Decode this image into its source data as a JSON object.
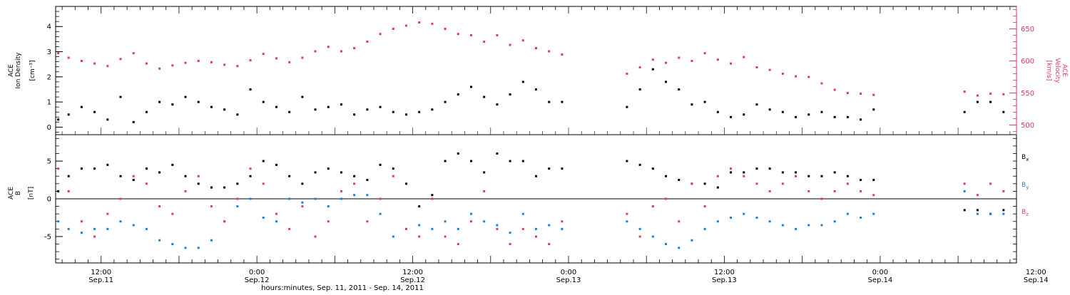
{
  "colors": {
    "black": "#000000",
    "pink": "#e5356a",
    "blue": "#1f7fd6"
  },
  "x_axis": {
    "xlabel": "hours:minutes, Sep. 11, 2011 - Sep. 14, 2011",
    "xlim_hours": [
      -3.5,
      70.5
    ],
    "ticks": [
      {
        "hours": 0,
        "time": "12:00",
        "date": "Sep.11"
      },
      {
        "hours": 12,
        "time": "0:00",
        "date": "Sep.12"
      },
      {
        "hours": 24,
        "time": "12:00",
        "date": "Sep.12"
      },
      {
        "hours": 36,
        "time": "0:00",
        "date": "Sep.13"
      },
      {
        "hours": 48,
        "time": "12:00",
        "date": "Sep.13"
      },
      {
        "hours": 60,
        "time": "0:00",
        "date": "Sep.14"
      },
      {
        "hours": 72,
        "time": "12:00",
        "date": "Sep.14"
      }
    ]
  },
  "chart_data": [
    {
      "type": "scatter",
      "panel": "top",
      "ylabel_lines": [
        "ACE",
        "Ion Density"
      ],
      "yunit": "[cm⁻³]",
      "ylim": [
        -0.3,
        4.8
      ],
      "yticks": [
        0,
        1,
        2,
        3,
        4
      ],
      "y2label_lines": [
        "ACE",
        "Velocity"
      ],
      "y2unit": "[km/s]",
      "y2lim": [
        485,
        685
      ],
      "y2ticks": [
        500,
        550,
        600,
        650
      ],
      "series": [
        {
          "key": "density",
          "axis": "left",
          "color": "#000000",
          "x": [
            -3.3,
            -2.5,
            -1.5,
            -0.5,
            0.5,
            1.5,
            2.5,
            3.5,
            4.5,
            5.5,
            6.5,
            7.5,
            8.5,
            9.5,
            10.5,
            11.5,
            12.5,
            13.5,
            14.5,
            15.5,
            16.5,
            17.5,
            18.5,
            19.5,
            20.5,
            21.5,
            22.5,
            23.5,
            24.5,
            25.5,
            26.5,
            27.5,
            28.5,
            29.5,
            30.5,
            31.5,
            32.5,
            33.5,
            34.5,
            35.5,
            40.5,
            41.5,
            42.5,
            43.5,
            44.5,
            45.5,
            46.5,
            47.5,
            48.5,
            49.5,
            50.5,
            51.5,
            52.5,
            53.5,
            54.5,
            55.5,
            56.5,
            57.5,
            58.5,
            59.5,
            66.5,
            67.5,
            68.5,
            69.5
          ],
          "y": [
            0.3,
            0.5,
            0.8,
            0.6,
            0.3,
            1.2,
            0.2,
            0.6,
            1.0,
            0.9,
            1.2,
            1.0,
            0.8,
            0.7,
            0.5,
            1.5,
            1.0,
            0.8,
            0.6,
            1.2,
            0.7,
            0.8,
            0.9,
            0.5,
            0.7,
            0.8,
            0.6,
            0.5,
            0.6,
            0.7,
            1.0,
            1.3,
            1.6,
            1.2,
            0.9,
            1.3,
            1.8,
            1.5,
            1.0,
            1.0,
            0.8,
            1.5,
            2.3,
            1.8,
            1.5,
            0.9,
            1.0,
            0.6,
            0.4,
            0.5,
            0.9,
            0.7,
            0.6,
            0.4,
            0.5,
            0.6,
            0.4,
            0.4,
            0.3,
            0.7,
            0.6,
            1.0,
            1.0,
            0.6
          ]
        },
        {
          "key": "velocity",
          "axis": "right",
          "color": "#e5356a",
          "x": [
            -3.3,
            -2.5,
            -1.5,
            -0.5,
            0.5,
            1.5,
            2.5,
            3.5,
            4.5,
            5.5,
            6.5,
            7.5,
            8.5,
            9.5,
            10.5,
            11.5,
            12.5,
            13.5,
            14.5,
            15.5,
            16.5,
            17.5,
            18.5,
            19.5,
            20.5,
            21.5,
            22.5,
            23.5,
            24.5,
            25.5,
            26.5,
            27.5,
            28.5,
            29.5,
            30.5,
            31.5,
            32.5,
            33.5,
            34.5,
            35.5,
            40.5,
            41.5,
            42.5,
            43.5,
            44.5,
            45.5,
            46.5,
            47.5,
            48.5,
            49.5,
            50.5,
            51.5,
            52.5,
            53.5,
            54.5,
            55.5,
            56.5,
            57.5,
            58.5,
            59.5,
            66.5,
            67.5,
            68.5,
            69.5
          ],
          "y": [
            612,
            605,
            600,
            596,
            592,
            603,
            612,
            596,
            588,
            593,
            597,
            600,
            598,
            594,
            592,
            601,
            611,
            604,
            598,
            605,
            615,
            622,
            615,
            620,
            630,
            642,
            650,
            655,
            660,
            658,
            650,
            642,
            640,
            630,
            640,
            625,
            632,
            620,
            615,
            610,
            580,
            590,
            602,
            597,
            605,
            600,
            612,
            602,
            596,
            606,
            590,
            586,
            580,
            576,
            575,
            565,
            555,
            550,
            549,
            547,
            552,
            546,
            549,
            548
          ]
        }
      ]
    },
    {
      "type": "scatter",
      "panel": "bottom",
      "ylabel_lines": [
        "ACE",
        "B"
      ],
      "yunit": "[nT]",
      "ylim": [
        -8.5,
        8.5
      ],
      "yticks": [
        -5,
        0,
        5
      ],
      "zero_line": true,
      "legend_position": "right",
      "series": [
        {
          "key": "bx",
          "name": "B",
          "sub": "x",
          "color": "#000000",
          "x": [
            -3.3,
            -2.5,
            -1.5,
            -0.5,
            0.5,
            1.5,
            2.5,
            3.5,
            4.5,
            5.5,
            6.5,
            7.5,
            8.5,
            9.5,
            10.5,
            11.5,
            12.5,
            13.5,
            14.5,
            15.5,
            16.5,
            17.5,
            18.5,
            19.5,
            20.5,
            21.5,
            22.5,
            23.5,
            24.5,
            25.5,
            26.5,
            27.5,
            28.5,
            29.5,
            30.5,
            31.5,
            32.5,
            33.5,
            34.5,
            35.5,
            40.5,
            41.5,
            42.5,
            43.5,
            44.5,
            45.5,
            46.5,
            47.5,
            48.5,
            49.5,
            50.5,
            51.5,
            52.5,
            53.5,
            54.5,
            55.5,
            56.5,
            57.5,
            58.5,
            59.5,
            66.5,
            67.5,
            68.5,
            69.5
          ],
          "y": [
            1,
            3,
            4,
            4,
            4.5,
            3,
            2.5,
            4,
            3.5,
            4.5,
            3,
            2,
            1.5,
            1.5,
            2,
            3,
            5,
            4.5,
            3,
            2,
            3.5,
            4,
            3.5,
            3,
            2.5,
            4.5,
            4,
            2,
            -1,
            0.5,
            5,
            6,
            5,
            3.5,
            6,
            5,
            5,
            3,
            4,
            4,
            5,
            4.5,
            4,
            3,
            2.5,
            2,
            2,
            1.5,
            3.5,
            3.5,
            4,
            4,
            3.5,
            3.5,
            3,
            3,
            3.5,
            3,
            2.5,
            2.5,
            -1.5,
            -1.5,
            -2,
            -1.5
          ]
        },
        {
          "key": "by",
          "name": "B",
          "sub": "y",
          "color": "#1f7fd6",
          "x": [
            -3.3,
            -2.5,
            -1.5,
            -0.5,
            0.5,
            1.5,
            2.5,
            3.5,
            4.5,
            5.5,
            6.5,
            7.5,
            8.5,
            9.5,
            10.5,
            11.5,
            12.5,
            13.5,
            14.5,
            15.5,
            16.5,
            17.5,
            18.5,
            19.5,
            20.5,
            21.5,
            22.5,
            23.5,
            24.5,
            25.5,
            26.5,
            27.5,
            28.5,
            29.5,
            30.5,
            31.5,
            32.5,
            33.5,
            34.5,
            35.5,
            40.5,
            41.5,
            42.5,
            43.5,
            44.5,
            45.5,
            46.5,
            47.5,
            48.5,
            49.5,
            50.5,
            51.5,
            52.5,
            53.5,
            54.5,
            55.5,
            56.5,
            57.5,
            58.5,
            59.5,
            66.5,
            67.5,
            68.5,
            69.5
          ],
          "y": [
            -3,
            -4,
            -4.5,
            -4,
            -4,
            -3,
            -3.5,
            -4,
            -5.5,
            -6,
            -6.5,
            -6.5,
            -5.5,
            -3,
            -1,
            0,
            -2.5,
            -3,
            0,
            -0.5,
            0,
            -1,
            0,
            0.5,
            0.5,
            -2,
            -5,
            -4,
            -3.5,
            -4,
            -3,
            -4,
            -2,
            -3,
            -3.5,
            -4.5,
            -2,
            -4,
            -3.5,
            -4,
            -3,
            -4,
            -5,
            -6,
            -6.5,
            -5.5,
            -4,
            -3,
            -2.5,
            -2,
            -2.5,
            -3,
            -3.5,
            -4,
            -3.5,
            -3.5,
            -3,
            -2,
            -2.5,
            -2,
            1,
            -2,
            -2,
            -2
          ]
        },
        {
          "key": "bz",
          "name": "B",
          "sub": "z",
          "color": "#e5356a",
          "x": [
            -3.3,
            -2.5,
            -1.5,
            -0.5,
            0.5,
            1.5,
            2.5,
            3.5,
            4.5,
            5.5,
            6.5,
            7.5,
            8.5,
            9.5,
            10.5,
            11.5,
            12.5,
            13.5,
            14.5,
            15.5,
            16.5,
            17.5,
            18.5,
            19.5,
            20.5,
            21.5,
            22.5,
            23.5,
            24.5,
            25.5,
            26.5,
            27.5,
            28.5,
            29.5,
            30.5,
            31.5,
            32.5,
            33.5,
            34.5,
            35.5,
            40.5,
            41.5,
            42.5,
            43.5,
            44.5,
            45.5,
            46.5,
            47.5,
            48.5,
            49.5,
            50.5,
            51.5,
            52.5,
            53.5,
            54.5,
            55.5,
            56.5,
            57.5,
            58.5,
            59.5,
            66.5,
            67.5,
            68.5,
            69.5
          ],
          "y": [
            4,
            1,
            -3,
            -5,
            -2,
            0,
            3,
            2,
            -1,
            -2,
            1,
            3,
            -1,
            -3,
            0,
            4,
            2,
            -2,
            -4,
            -1,
            -5,
            -3,
            1,
            2,
            -3,
            0,
            3,
            -4,
            -5,
            0,
            -5,
            -6,
            -3,
            1,
            -4,
            -6,
            -4,
            -5,
            -6,
            -3,
            -2,
            -5,
            -1,
            0,
            -3,
            2,
            -1,
            3,
            4,
            3,
            2,
            1,
            2,
            3,
            1,
            0,
            1,
            2,
            1,
            0.5,
            2,
            0.5,
            2,
            1
          ]
        }
      ]
    }
  ]
}
